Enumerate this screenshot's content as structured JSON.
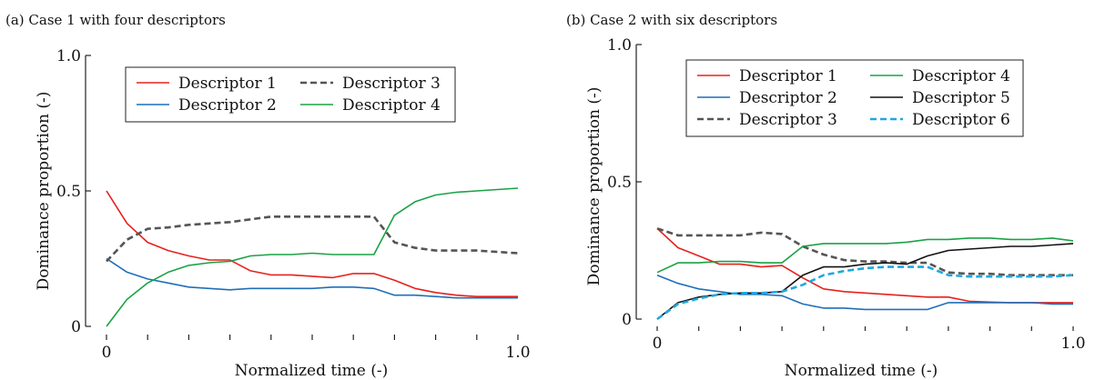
{
  "chart_data": [
    {
      "type": "line",
      "title": "(a) Case 1 with four descriptors",
      "xlabel": "Normalized time (-)",
      "ylabel": "Dominance proportion (-)",
      "xlim": [
        0,
        1
      ],
      "ylim": [
        0,
        1
      ],
      "xticks": [
        0,
        0.1,
        0.2,
        0.3,
        0.4,
        0.5,
        0.6,
        0.7,
        0.8,
        0.9,
        1.0
      ],
      "xtick_labels": [
        "0",
        "",
        "",
        "",
        "",
        "",
        "",
        "",
        "",
        "",
        "1.0"
      ],
      "yticks": [
        0,
        0.5,
        1.0
      ],
      "ytick_labels": [
        "0",
        "0.5",
        "1.0"
      ],
      "grid": false,
      "legend_columns": 2,
      "series": [
        {
          "name": "Descriptor 1",
          "color": "#e8201c",
          "dash": "solid",
          "x": [
            0,
            0.05,
            0.1,
            0.15,
            0.2,
            0.25,
            0.3,
            0.35,
            0.4,
            0.45,
            0.5,
            0.55,
            0.6,
            0.65,
            0.7,
            0.75,
            0.8,
            0.85,
            0.9,
            0.95,
            1.0
          ],
          "y": [
            0.5,
            0.38,
            0.31,
            0.28,
            0.26,
            0.245,
            0.245,
            0.205,
            0.19,
            0.19,
            0.185,
            0.18,
            0.195,
            0.195,
            0.17,
            0.14,
            0.125,
            0.115,
            0.11,
            0.11,
            0.11
          ]
        },
        {
          "name": "Descriptor 2",
          "color": "#1f6fb8",
          "dash": "solid",
          "x": [
            0,
            0.05,
            0.1,
            0.15,
            0.2,
            0.25,
            0.3,
            0.35,
            0.4,
            0.45,
            0.5,
            0.55,
            0.6,
            0.65,
            0.7,
            0.75,
            0.8,
            0.85,
            0.9,
            0.95,
            1.0
          ],
          "y": [
            0.25,
            0.2,
            0.175,
            0.16,
            0.145,
            0.14,
            0.135,
            0.14,
            0.14,
            0.14,
            0.14,
            0.145,
            0.145,
            0.14,
            0.115,
            0.115,
            0.11,
            0.105,
            0.105,
            0.105,
            0.105
          ]
        },
        {
          "name": "Descriptor 3",
          "color": "#555555",
          "dash": "dashed",
          "x": [
            0,
            0.05,
            0.1,
            0.15,
            0.2,
            0.25,
            0.3,
            0.35,
            0.4,
            0.45,
            0.5,
            0.55,
            0.6,
            0.65,
            0.7,
            0.75,
            0.8,
            0.85,
            0.9,
            0.95,
            1.0
          ],
          "y": [
            0.24,
            0.32,
            0.36,
            0.365,
            0.375,
            0.38,
            0.385,
            0.395,
            0.405,
            0.405,
            0.405,
            0.405,
            0.405,
            0.405,
            0.31,
            0.29,
            0.28,
            0.28,
            0.28,
            0.275,
            0.27
          ]
        },
        {
          "name": "Descriptor 4",
          "color": "#1aa245",
          "dash": "solid",
          "x": [
            0,
            0.05,
            0.1,
            0.15,
            0.2,
            0.25,
            0.3,
            0.35,
            0.4,
            0.45,
            0.5,
            0.55,
            0.6,
            0.65,
            0.7,
            0.75,
            0.8,
            0.85,
            0.9,
            0.95,
            1.0
          ],
          "y": [
            0.0,
            0.1,
            0.16,
            0.2,
            0.225,
            0.235,
            0.24,
            0.26,
            0.265,
            0.265,
            0.27,
            0.265,
            0.265,
            0.265,
            0.41,
            0.46,
            0.485,
            0.495,
            0.5,
            0.505,
            0.51
          ]
        }
      ]
    },
    {
      "type": "line",
      "title": "(b) Case 2 with six descriptors",
      "xlabel": "Normalized time (-)",
      "ylabel": "Dominance proportion (-)",
      "xlim": [
        0,
        1
      ],
      "ylim": [
        0,
        1
      ],
      "xticks": [
        0,
        0.1,
        0.2,
        0.3,
        0.4,
        0.5,
        0.6,
        0.7,
        0.8,
        0.9,
        1.0
      ],
      "xtick_labels": [
        "0",
        "",
        "",
        "",
        "",
        "",
        "",
        "",
        "",
        "",
        "1.0"
      ],
      "yticks": [
        0,
        0.5,
        1.0
      ],
      "ytick_labels": [
        "0",
        "0.5",
        "1.0"
      ],
      "grid": false,
      "legend_columns": 2,
      "series": [
        {
          "name": "Descriptor 1",
          "color": "#e8201c",
          "dash": "solid",
          "x": [
            0,
            0.05,
            0.1,
            0.15,
            0.2,
            0.25,
            0.3,
            0.35,
            0.4,
            0.45,
            0.5,
            0.55,
            0.6,
            0.65,
            0.7,
            0.75,
            0.8,
            0.85,
            0.9,
            0.95,
            1.0
          ],
          "y": [
            0.33,
            0.26,
            0.23,
            0.2,
            0.2,
            0.19,
            0.195,
            0.15,
            0.11,
            0.1,
            0.095,
            0.09,
            0.085,
            0.08,
            0.08,
            0.065,
            0.062,
            0.06,
            0.06,
            0.06,
            0.06
          ]
        },
        {
          "name": "Descriptor 2",
          "color": "#1f6fb8",
          "dash": "solid",
          "x": [
            0,
            0.05,
            0.1,
            0.15,
            0.2,
            0.25,
            0.3,
            0.35,
            0.4,
            0.45,
            0.5,
            0.55,
            0.6,
            0.65,
            0.7,
            0.75,
            0.8,
            0.85,
            0.9,
            0.95,
            1.0
          ],
          "y": [
            0.16,
            0.13,
            0.11,
            0.1,
            0.09,
            0.09,
            0.085,
            0.055,
            0.04,
            0.04,
            0.035,
            0.035,
            0.035,
            0.035,
            0.06,
            0.06,
            0.06,
            0.06,
            0.06,
            0.055,
            0.055
          ]
        },
        {
          "name": "Descriptor 3",
          "color": "#555555",
          "dash": "dashed",
          "x": [
            0,
            0.05,
            0.1,
            0.15,
            0.2,
            0.25,
            0.3,
            0.35,
            0.4,
            0.45,
            0.5,
            0.55,
            0.6,
            0.65,
            0.7,
            0.75,
            0.8,
            0.85,
            0.9,
            0.95,
            1.0
          ],
          "y": [
            0.33,
            0.305,
            0.305,
            0.305,
            0.305,
            0.315,
            0.31,
            0.265,
            0.235,
            0.215,
            0.21,
            0.21,
            0.205,
            0.205,
            0.17,
            0.165,
            0.165,
            0.16,
            0.16,
            0.16,
            0.16
          ]
        },
        {
          "name": "Descriptor 4",
          "color": "#1aa245",
          "dash": "solid",
          "x": [
            0,
            0.05,
            0.1,
            0.15,
            0.2,
            0.25,
            0.3,
            0.35,
            0.4,
            0.45,
            0.5,
            0.55,
            0.6,
            0.65,
            0.7,
            0.75,
            0.8,
            0.85,
            0.9,
            0.95,
            1.0
          ],
          "y": [
            0.17,
            0.205,
            0.205,
            0.21,
            0.21,
            0.205,
            0.205,
            0.265,
            0.275,
            0.275,
            0.275,
            0.275,
            0.28,
            0.29,
            0.29,
            0.295,
            0.295,
            0.29,
            0.29,
            0.295,
            0.285
          ]
        },
        {
          "name": "Descriptor 5",
          "color": "#111111",
          "dash": "solid",
          "x": [
            0,
            0.05,
            0.1,
            0.15,
            0.2,
            0.25,
            0.3,
            0.35,
            0.4,
            0.45,
            0.5,
            0.55,
            0.6,
            0.65,
            0.7,
            0.75,
            0.8,
            0.85,
            0.9,
            0.95,
            1.0
          ],
          "y": [
            0.0,
            0.06,
            0.08,
            0.09,
            0.095,
            0.095,
            0.1,
            0.16,
            0.19,
            0.19,
            0.2,
            0.205,
            0.2,
            0.23,
            0.25,
            0.255,
            0.26,
            0.265,
            0.265,
            0.27,
            0.275
          ]
        },
        {
          "name": "Descriptor 6",
          "color": "#1fa8e0",
          "dash": "dashed",
          "x": [
            0,
            0.05,
            0.1,
            0.15,
            0.2,
            0.25,
            0.3,
            0.35,
            0.4,
            0.45,
            0.5,
            0.55,
            0.6,
            0.65,
            0.7,
            0.75,
            0.8,
            0.85,
            0.9,
            0.95,
            1.0
          ],
          "y": [
            0.0,
            0.055,
            0.075,
            0.09,
            0.095,
            0.095,
            0.1,
            0.125,
            0.16,
            0.175,
            0.185,
            0.19,
            0.19,
            0.19,
            0.16,
            0.155,
            0.155,
            0.155,
            0.155,
            0.155,
            0.16
          ]
        }
      ]
    }
  ]
}
